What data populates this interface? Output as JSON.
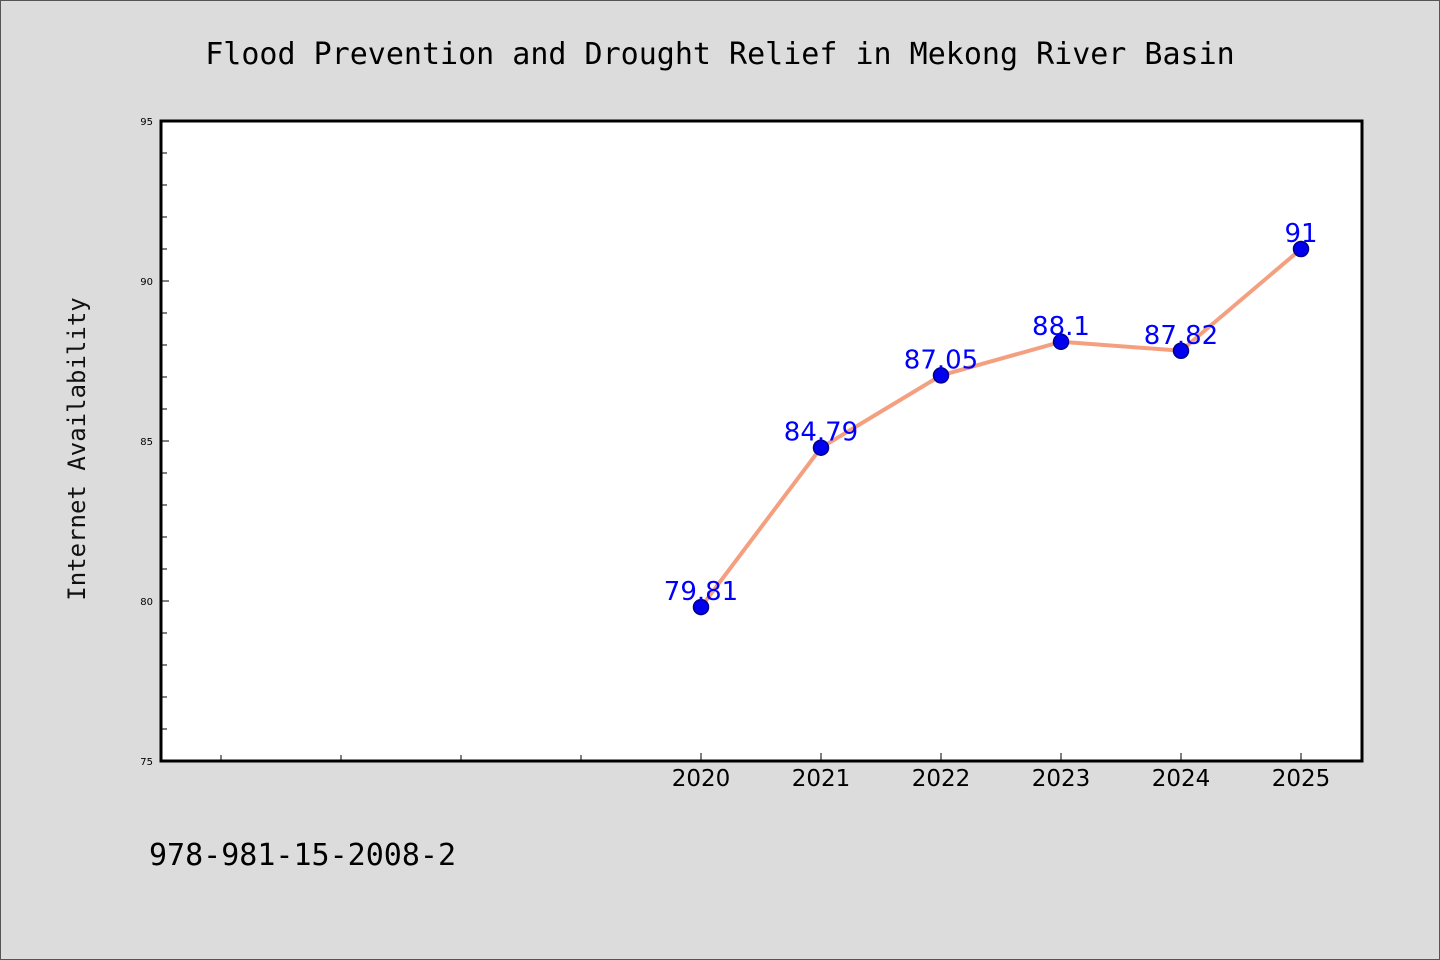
{
  "chart_data": {
    "type": "line",
    "title": "Flood Prevention and Drought Relief in Mekong River Basin",
    "xlabel": "",
    "ylabel": "Internet Availability",
    "x": [
      "2020",
      "2021",
      "2022",
      "2023",
      "2024",
      "2025"
    ],
    "series": [
      {
        "values": [
          79.81,
          84.79,
          87.05,
          88.1,
          87.82,
          91
        ],
        "labels": [
          "79.81",
          "84.79",
          "87.05",
          "88.1",
          "87.82",
          "91"
        ]
      }
    ],
    "ylim": [
      75,
      95
    ],
    "yticks": [
      "75",
      "80",
      "85",
      "90",
      "95"
    ],
    "grid": false,
    "legend": "none",
    "colors": {
      "line": "#f4a080",
      "marker": "#0000ee",
      "marker_edge": "#00008b",
      "label": "#0000ff",
      "background": "#dcdcdc",
      "plot_background": "#ffffff"
    }
  },
  "footer": {
    "isbn": "978-981-15-2008-2"
  }
}
